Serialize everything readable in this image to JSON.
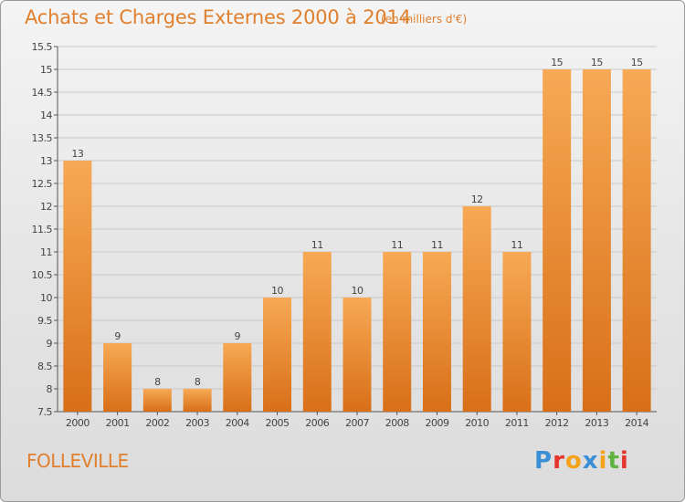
{
  "header": {
    "title": "Achats et Charges Externes 2000 à 2014",
    "unit": "(en milliers d'€)"
  },
  "footer": {
    "commune": "FOLLEVILLE",
    "brand_letters": [
      "P",
      "r",
      "o",
      "x",
      "i",
      "t",
      "i"
    ],
    "brand_colors": [
      "#3a8fd6",
      "#e4342c",
      "#f4a31b",
      "#3a8fd6",
      "#f4a31b",
      "#60b33f",
      "#e4342c"
    ]
  },
  "colors": {
    "bar_light": "#f7a955",
    "bar_dark": "#d86f18",
    "title": "#e0802f"
  },
  "chart_data": {
    "type": "bar",
    "categories": [
      "2000",
      "2001",
      "2002",
      "2003",
      "2004",
      "2005",
      "2006",
      "2007",
      "2008",
      "2009",
      "2010",
      "2011",
      "2012",
      "2013",
      "2014"
    ],
    "values": [
      13,
      9,
      8,
      8,
      9,
      10,
      11,
      10,
      11,
      11,
      12,
      11,
      15,
      15,
      15
    ],
    "data_labels": [
      "13",
      "9",
      "8",
      "8",
      "9",
      "10",
      "11",
      "10",
      "11",
      "11",
      "12",
      "11",
      "15",
      "15",
      "15"
    ],
    "ylim": [
      7.5,
      15.5
    ],
    "yticks": [
      7.5,
      8,
      8.5,
      9,
      9.5,
      10,
      10.5,
      11,
      11.5,
      12,
      12.5,
      13,
      13.5,
      14,
      14.5,
      15,
      15.5
    ],
    "ytick_labels": [
      "7.5",
      "8",
      "8.5",
      "9",
      "9.5",
      "10",
      "10.5",
      "11",
      "11.5",
      "12",
      "12.5",
      "13",
      "13.5",
      "14",
      "14.5",
      "15",
      "15.5"
    ],
    "grid": true,
    "title": "Achats et Charges Externes 2000 à 2014",
    "xlabel": "",
    "ylabel": ""
  }
}
